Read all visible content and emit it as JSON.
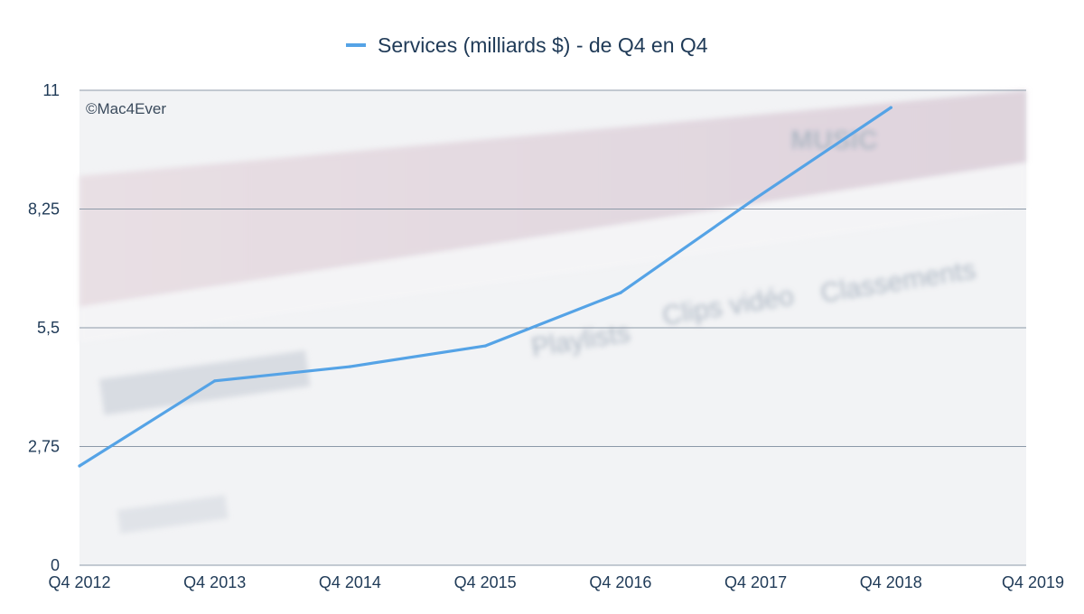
{
  "watermark": "©Mac4Ever",
  "chart_data": {
    "type": "line",
    "categories": [
      "Q4 2012",
      "Q4 2013",
      "Q4 2014",
      "Q4 2015",
      "Q4 2016",
      "Q4 2017",
      "Q4 2018",
      "Q4 2019"
    ],
    "series": [
      {
        "name": "Services (milliards $) - de Q4 en Q4",
        "color": "#55a3e6",
        "values": [
          2.3,
          4.27,
          4.6,
          5.08,
          6.31,
          8.5,
          10.6,
          null
        ]
      }
    ],
    "yticks": [
      "0",
      "2,75",
      "5,5",
      "8,25",
      "11"
    ],
    "ylim": [
      0,
      11
    ],
    "grid": true,
    "legend_position": "top-center"
  }
}
